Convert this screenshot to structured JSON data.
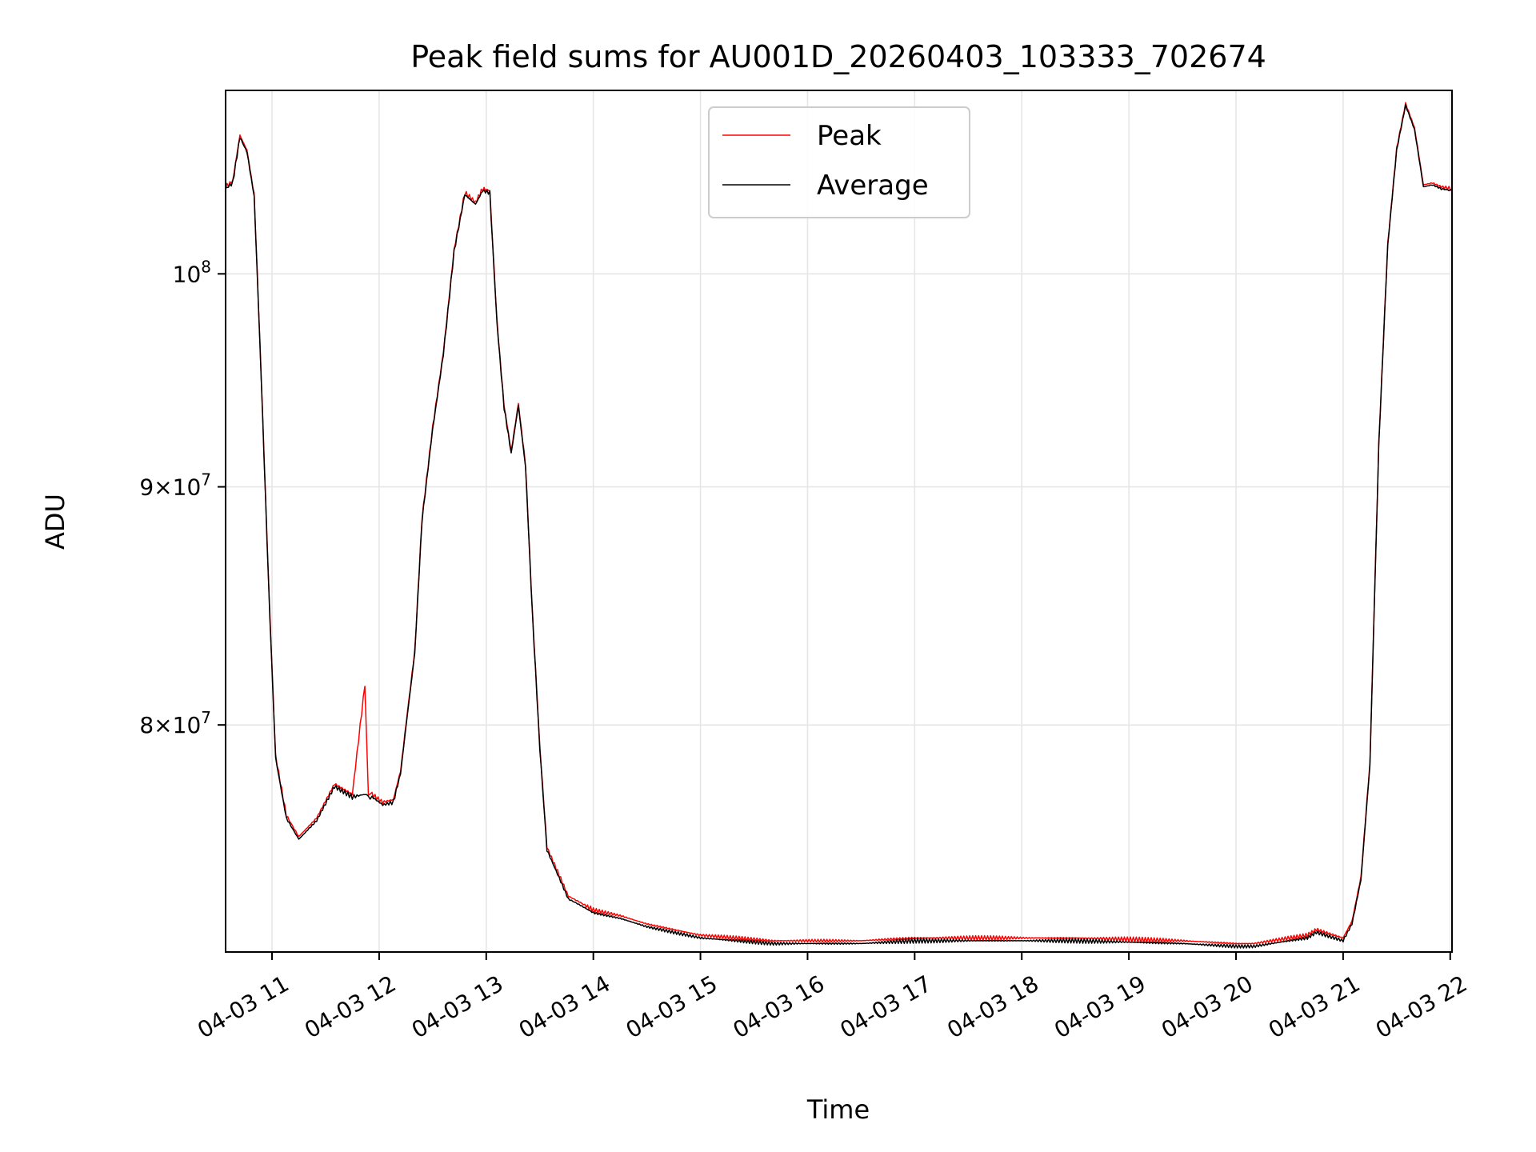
{
  "chart_data": {
    "type": "line",
    "title": "Peak field sums for AU001D_20260403_103333_702674",
    "xlabel": "Time",
    "ylabel": "ADU",
    "xlim": [
      "04-03 10:34",
      "04-03 22:01"
    ],
    "ylim": [
      71500000,
      109500000
    ],
    "yscale": "log",
    "grid": true,
    "legend": "upper center",
    "x_ticks": [
      "04-03 11",
      "04-03 12",
      "04-03 13",
      "04-03 14",
      "04-03 15",
      "04-03 16",
      "04-03 17",
      "04-03 18",
      "04-03 19",
      "04-03 20",
      "04-03 21",
      "04-03 22"
    ],
    "y_ticks": [
      {
        "value": 80000000,
        "mantissa": "8",
        "exponent": "7",
        "label": "8×10^7"
      },
      {
        "value": 90000000,
        "mantissa": "9",
        "exponent": "7",
        "label": "9×10^7"
      },
      {
        "value": 100000000,
        "mantissa": "",
        "exponent": "8",
        "label": "10^8"
      }
    ],
    "x": [
      "10:34",
      "10:38",
      "10:42",
      "10:46",
      "10:50",
      "10:54",
      "10:58",
      "11:02",
      "11:08",
      "11:15",
      "11:25",
      "11:35",
      "11:45",
      "11:52",
      "11:54",
      "11:56",
      "12:02",
      "12:08",
      "12:12",
      "12:16",
      "12:20",
      "12:24",
      "12:30",
      "12:36",
      "12:42",
      "12:48",
      "12:54",
      "12:58",
      "13:02",
      "13:06",
      "13:10",
      "13:14",
      "13:18",
      "13:22",
      "13:26",
      "13:30",
      "13:34",
      "13:40",
      "13:46",
      "13:52",
      "14:00",
      "14:15",
      "14:30",
      "14:45",
      "15:00",
      "15:20",
      "15:40",
      "16:00",
      "16:30",
      "17:00",
      "17:30",
      "18:00",
      "18:30",
      "19:00",
      "19:30",
      "19:45",
      "20:00",
      "20:10",
      "20:20",
      "20:30",
      "20:40",
      "20:45",
      "20:50",
      "20:55",
      "21:00",
      "21:05",
      "21:10",
      "21:15",
      "21:20",
      "21:25",
      "21:30",
      "21:35",
      "21:40",
      "21:45",
      "21:50",
      "21:55",
      "22:01"
    ],
    "series": [
      {
        "name": "Peak",
        "color": "#ff0000",
        "values": [
          104400000,
          104700000,
          107100000,
          106300000,
          104000000,
          95000000,
          86000000,
          78800000,
          76500000,
          75700000,
          76400000,
          77700000,
          77300000,
          81600000,
          77300000,
          77300000,
          77000000,
          77100000,
          78200000,
          80600000,
          83000000,
          88600000,
          92700000,
          96200000,
          101200000,
          104100000,
          103600000,
          104300000,
          104200000,
          97700000,
          93700000,
          91600000,
          93800000,
          91000000,
          84400000,
          79200000,
          75300000,
          74400000,
          73500000,
          73300000,
          73000000,
          72800000,
          72500000,
          72300000,
          72100000,
          72000000,
          71900000,
          71900000,
          71900000,
          72000000,
          72000000,
          72000000,
          72000000,
          71950000,
          71900000,
          71850000,
          71800000,
          71800000,
          71900000,
          72000000,
          72100000,
          72300000,
          72200000,
          72100000,
          72000000,
          72600000,
          74200000,
          78500000,
          92000000,
          101500000,
          106400000,
          108800000,
          107500000,
          104500000,
          104600000,
          104400000,
          104300000
        ]
      },
      {
        "name": "Average",
        "color": "#000000",
        "values": [
          104300000,
          104600000,
          107000000,
          106200000,
          103900000,
          94900000,
          85900000,
          78700000,
          76400000,
          75600000,
          76300000,
          77600000,
          77200000,
          77300000,
          77200000,
          77200000,
          76900000,
          77000000,
          78100000,
          80500000,
          82900000,
          88500000,
          92600000,
          96100000,
          101100000,
          104000000,
          103500000,
          104200000,
          104100000,
          97600000,
          93600000,
          91500000,
          93700000,
          90900000,
          84300000,
          79100000,
          75200000,
          74300000,
          73400000,
          73200000,
          72900000,
          72700000,
          72400000,
          72200000,
          72000000,
          71900000,
          71800000,
          71800000,
          71800000,
          71900000,
          71900000,
          71900000,
          71900000,
          71850000,
          71800000,
          71750000,
          71700000,
          71700000,
          71800000,
          71900000,
          72000000,
          72200000,
          72100000,
          72000000,
          71900000,
          72500000,
          74100000,
          78400000,
          91900000,
          101400000,
          106300000,
          108700000,
          107400000,
          104400000,
          104500000,
          104300000,
          104200000
        ]
      }
    ]
  }
}
